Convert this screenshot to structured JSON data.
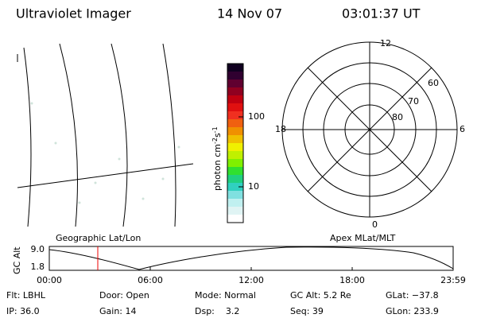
{
  "header": {
    "title": "Ultraviolet Imager",
    "date": "14 Nov 07",
    "time": "03:01:37 UT"
  },
  "colorbar": {
    "label": [
      "photon cm",
      "-2",
      "s",
      "-1"
    ],
    "ticks": [
      "100",
      "10"
    ]
  },
  "polar": {
    "mlt_labels": [
      "12",
      "18",
      "6",
      "0"
    ],
    "mlat_labels": [
      "60",
      "70",
      "80"
    ]
  },
  "altitude_plot": {
    "y_label": "GC Alt",
    "y_ticks": [
      "9.0",
      "1.8"
    ],
    "left_title": "Geographic Lat/Lon",
    "right_title": "Apex MLat/MLT",
    "x_ticks": [
      "00:00",
      "06:00",
      "12:00",
      "18:00",
      "23:59"
    ]
  },
  "footer": {
    "rows": [
      [
        "Flt: LBHL",
        "Door: Open",
        "Mode: Normal",
        "GC Alt: 5.2 Re",
        "GLat: −37.8"
      ],
      [
        "IP: 36.0",
        "Gain: 14",
        "Dsp:    3.2",
        "Seq: 39",
        "GLon: 233.9"
      ]
    ]
  }
}
